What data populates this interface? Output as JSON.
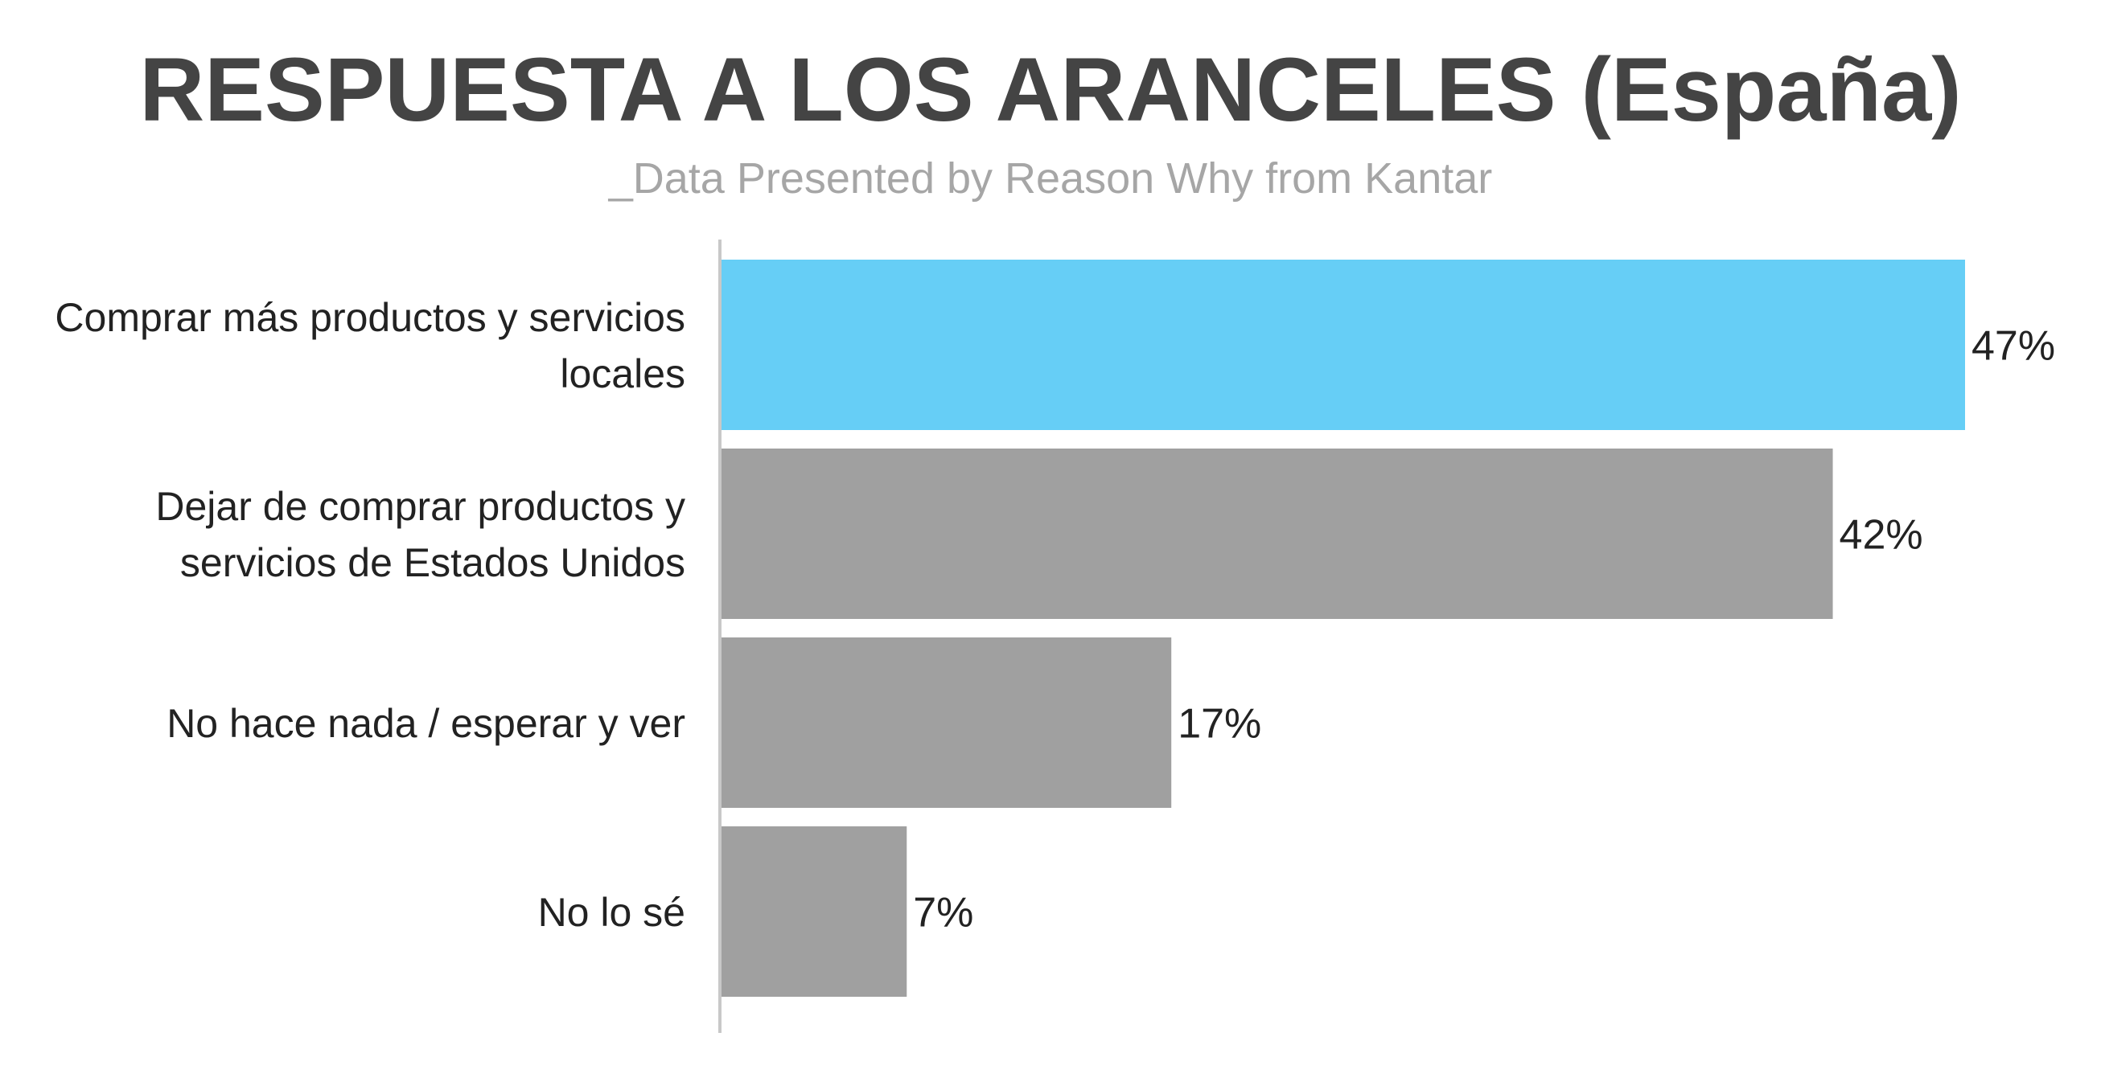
{
  "chart_data": {
    "type": "bar",
    "orientation": "horizontal",
    "title": "RESPUESTA A LOS ARANCELES (España)",
    "subtitle": "_Data Presented by Reason Why from Kantar",
    "categories": [
      [
        "Comprar más productos y servicios",
        "locales"
      ],
      [
        "Dejar de comprar productos y",
        "servicios de Estados Unidos"
      ],
      [
        "No hace nada / esperar y ver"
      ],
      [
        "No lo sé"
      ]
    ],
    "values": [
      47,
      42,
      17,
      7
    ],
    "value_labels": [
      "47%",
      "42%",
      "17%",
      "7%"
    ],
    "unit": "%",
    "xlim": [
      0,
      47
    ],
    "grid": false,
    "legend": "none",
    "colors": {
      "highlight": "#66cef6",
      "default": "#a0a0a0",
      "axis": "#c8c8c8",
      "title": "#444444",
      "subtitle": "#a6a6a6"
    }
  }
}
